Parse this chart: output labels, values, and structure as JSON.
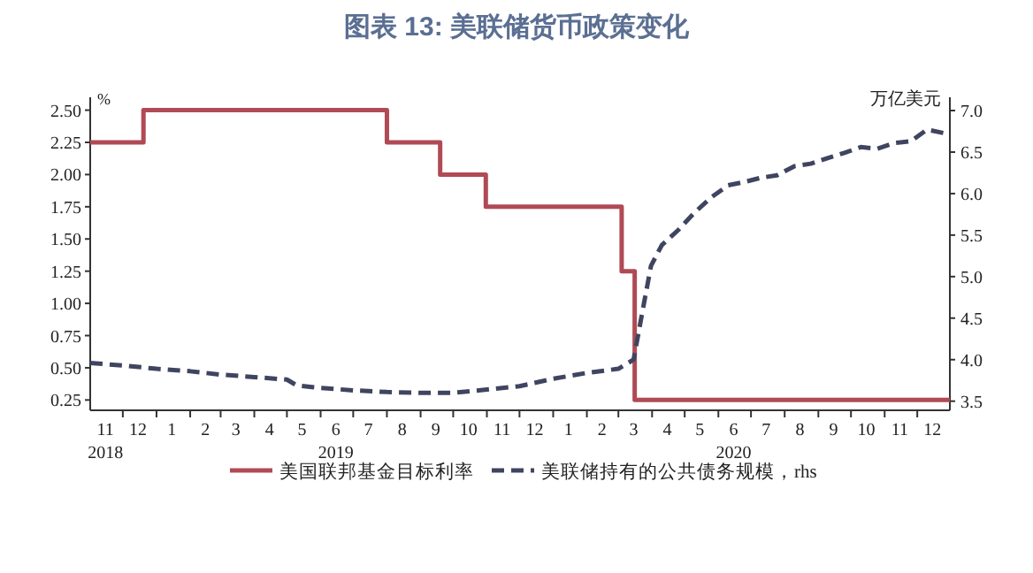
{
  "chart_data": {
    "type": "line",
    "title": "图表 13: 美联储货币政策变化",
    "ylabel": "%",
    "y2label": "万亿美元",
    "xlim": [
      "2018-11-01",
      "2020-12-31"
    ],
    "xticks": [
      {
        "value": "2018-11-15",
        "label": "11\n2018"
      },
      {
        "value": "2018-12-15",
        "label": "12"
      },
      {
        "value": "2019-01-15",
        "label": "1"
      },
      {
        "value": "2019-02-15",
        "label": "2"
      },
      {
        "value": "2019-03-15",
        "label": "3"
      },
      {
        "value": "2019-04-15",
        "label": "4"
      },
      {
        "value": "2019-05-15",
        "label": "5"
      },
      {
        "value": "2019-06-15",
        "label": "6\n2019"
      },
      {
        "value": "2019-07-15",
        "label": "7"
      },
      {
        "value": "2019-08-15",
        "label": "8"
      },
      {
        "value": "2019-09-15",
        "label": "9"
      },
      {
        "value": "2019-10-15",
        "label": "10"
      },
      {
        "value": "2019-11-15",
        "label": "11"
      },
      {
        "value": "2019-12-15",
        "label": "12"
      },
      {
        "value": "2020-01-15",
        "label": "1"
      },
      {
        "value": "2020-02-15",
        "label": "2"
      },
      {
        "value": "2020-03-15",
        "label": "3"
      },
      {
        "value": "2020-04-15",
        "label": "4"
      },
      {
        "value": "2020-05-15",
        "label": "5"
      },
      {
        "value": "2020-06-15",
        "label": "6\n2020"
      },
      {
        "value": "2020-07-15",
        "label": "7"
      },
      {
        "value": "2020-08-15",
        "label": "8"
      },
      {
        "value": "2020-09-15",
        "label": "9"
      },
      {
        "value": "2020-10-15",
        "label": "10"
      },
      {
        "value": "2020-11-15",
        "label": "11"
      },
      {
        "value": "2020-12-15",
        "label": "12"
      },
      {
        "value": "2018-12-01",
        "label": null
      },
      {
        "value": "2019-01-01",
        "label": null
      },
      {
        "value": "2019-02-01",
        "label": null
      },
      {
        "value": "2019-03-01",
        "label": null
      },
      {
        "value": "2019-04-01",
        "label": null
      },
      {
        "value": "2019-05-01",
        "label": null
      },
      {
        "value": "2019-06-01",
        "label": null
      },
      {
        "value": "2019-07-01",
        "label": null
      },
      {
        "value": "2019-08-01",
        "label": null
      },
      {
        "value": "2019-09-01",
        "label": null
      },
      {
        "value": "2019-10-01",
        "label": null
      },
      {
        "value": "2019-11-01",
        "label": null
      },
      {
        "value": "2019-12-01",
        "label": null
      },
      {
        "value": "2020-01-01",
        "label": null
      },
      {
        "value": "2020-02-01",
        "label": null
      },
      {
        "value": "2020-03-01",
        "label": null
      },
      {
        "value": "2020-04-01",
        "label": null
      },
      {
        "value": "2020-05-01",
        "label": null
      },
      {
        "value": "2020-06-01",
        "label": null
      },
      {
        "value": "2020-07-01",
        "label": null
      },
      {
        "value": "2020-08-01",
        "label": null
      },
      {
        "value": "2020-09-01",
        "label": null
      },
      {
        "value": "2020-10-01",
        "label": null
      },
      {
        "value": "2020-11-01",
        "label": null
      },
      {
        "value": "2020-12-01",
        "label": null
      }
    ],
    "ylim": [
      0.17,
      2.6
    ],
    "yticks": [
      {
        "value": 0.25,
        "label": "0.25"
      },
      {
        "value": 0.5,
        "label": "0.50"
      },
      {
        "value": 0.75,
        "label": "0.75"
      },
      {
        "value": 1.0,
        "label": "1.00"
      },
      {
        "value": 1.25,
        "label": "1.25"
      },
      {
        "value": 1.5,
        "label": "1.50"
      },
      {
        "value": 1.75,
        "label": "1.75"
      },
      {
        "value": 2.0,
        "label": "2.00"
      },
      {
        "value": 2.25,
        "label": "2.25"
      },
      {
        "value": 2.5,
        "label": "2.50"
      }
    ],
    "y2lim": [
      3.39,
      7.16
    ],
    "y2ticks": [
      {
        "value": 3.5,
        "label": "3.5"
      },
      {
        "value": 4.0,
        "label": "4.0"
      },
      {
        "value": 4.5,
        "label": "4.5"
      },
      {
        "value": 5.0,
        "label": "5.0"
      },
      {
        "value": 5.5,
        "label": "5.5"
      },
      {
        "value": 6.0,
        "label": "6.0"
      },
      {
        "value": 6.5,
        "label": "6.5"
      },
      {
        "value": 7.0,
        "label": "7.0"
      }
    ],
    "legend": "bottom",
    "series": [
      {
        "name": "美国联邦基金目标利率",
        "type": "step",
        "color": "#b04a55",
        "x": [
          "2018-11-01",
          "2018-12-20",
          "2019-08-01",
          "2019-09-19",
          "2019-10-31",
          "2020-03-04",
          "2020-03-16",
          "2020-12-31"
        ],
        "values": [
          2.25,
          2.5,
          2.25,
          2.0,
          1.75,
          1.25,
          0.25,
          0.25
        ]
      },
      {
        "name": "美联储持有的公共债务规模，rhs",
        "type": "line",
        "axis": "y2",
        "line_style": "dashed",
        "color": "#3f4560",
        "x": [
          "2018-11-01",
          "2018-12-01",
          "2019-01-01",
          "2019-02-01",
          "2019-03-01",
          "2019-04-01",
          "2019-05-01",
          "2019-05-10",
          "2019-06-01",
          "2019-07-01",
          "2019-08-01",
          "2019-09-01",
          "2019-10-01",
          "2019-11-01",
          "2019-12-01",
          "2020-01-01",
          "2020-02-01",
          "2020-03-01",
          "2020-03-15",
          "2020-03-22",
          "2020-03-31",
          "2020-04-10",
          "2020-04-25",
          "2020-05-10",
          "2020-05-25",
          "2020-06-10",
          "2020-06-25",
          "2020-07-10",
          "2020-07-25",
          "2020-08-10",
          "2020-08-25",
          "2020-09-10",
          "2020-09-25",
          "2020-10-10",
          "2020-10-25",
          "2020-11-10",
          "2020-11-25",
          "2020-12-10",
          "2020-12-25"
        ],
        "values": [
          3.96,
          3.93,
          3.89,
          3.86,
          3.82,
          3.79,
          3.76,
          3.69,
          3.66,
          3.63,
          3.61,
          3.6,
          3.6,
          3.64,
          3.68,
          3.77,
          3.84,
          3.89,
          4.0,
          4.5,
          5.13,
          5.38,
          5.56,
          5.77,
          5.95,
          6.1,
          6.14,
          6.19,
          6.22,
          6.33,
          6.36,
          6.43,
          6.49,
          6.56,
          6.54,
          6.61,
          6.63,
          6.77,
          6.73
        ]
      }
    ]
  }
}
